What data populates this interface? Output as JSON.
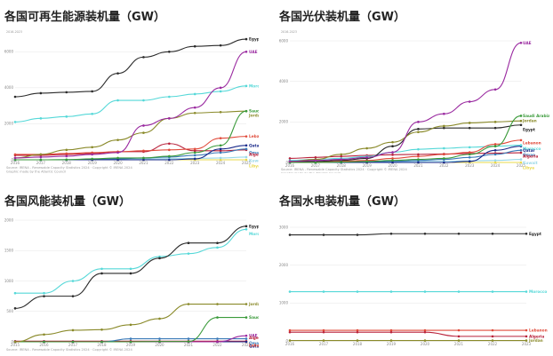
{
  "charts": [
    {
      "title": "各国可再生能源装机量（GW）",
      "range_note": "2016-2023",
      "source_note": "Source: IRENA - Renewable Capacity Statistics 2024 · Copyright © IRENA 2024",
      "source_note2": "Graphic made by the Atlantic Council",
      "y_ticks": [
        "0",
        "2000",
        "4000",
        "6000"
      ],
      "x_ticks": [
        "2016",
        "2017",
        "2018",
        "2019",
        "2020",
        "2021",
        "2022",
        "2023",
        "2024",
        "2025"
      ]
    },
    {
      "title": "各国光伏装机量（GW）",
      "range_note": "2016-2023",
      "source_note": "Source: IRENA - Renewable Capacity Statistics 2024 · Copyright © IRENA 2024",
      "source_note2": "Graphic made by the Atlantic Council",
      "y_ticks": [
        "0",
        "2000",
        "4000",
        "6000"
      ],
      "x_ticks": [
        "2016",
        "2017",
        "2018",
        "2019",
        "2020",
        "2021",
        "2022",
        "2023",
        "2024",
        "2025"
      ]
    },
    {
      "title": "各国风能装机量（GW）",
      "range_note": "",
      "source_note": "Source: IRENA - Renewable Capacity Statistics 2024 · Copyright © IRENA 2024",
      "source_note2": "",
      "y_ticks": [
        "0",
        "500",
        "1000",
        "1500",
        "2000"
      ],
      "x_ticks": [
        "2015",
        "2016",
        "2017",
        "2018",
        "2019",
        "2020",
        "2021",
        "2022",
        "2023"
      ]
    },
    {
      "title": "各国水电装机量（GW）",
      "range_note": "",
      "source_note": "",
      "source_note2": "",
      "y_ticks": [
        "0",
        "1000",
        "2000",
        "3000"
      ],
      "x_ticks": [
        "2016",
        "2017",
        "2018",
        "2019",
        "2020",
        "2021",
        "2022",
        "2023"
      ]
    }
  ],
  "chart_data": [
    {
      "type": "line",
      "title": "各国可再生能源装机量（GW）",
      "x": [
        2016,
        2017,
        2018,
        2019,
        2020,
        2021,
        2022,
        2023,
        2024,
        2025
      ],
      "ylim": [
        0,
        7000
      ],
      "series": [
        {
          "name": "Egypt",
          "color": "#2a2a2a",
          "values": [
            3500,
            3700,
            3750,
            3800,
            4800,
            5700,
            6000,
            6300,
            6350,
            6700
          ]
        },
        {
          "name": "UAE",
          "color": "#9a2aa0",
          "values": [
            100,
            150,
            200,
            300,
            400,
            1900,
            2300,
            2900,
            4000,
            6000
          ]
        },
        {
          "name": "Morocco",
          "color": "#55d8d8",
          "values": [
            2100,
            2300,
            2400,
            2550,
            3300,
            3300,
            3500,
            3650,
            3800,
            4100
          ]
        },
        {
          "name": "Saudi Arabia",
          "color": "#3a9a3a",
          "values": [
            0,
            0,
            10,
            50,
            100,
            100,
            200,
            400,
            800,
            2700
          ]
        },
        {
          "name": "Jordan",
          "color": "#8a8a2a",
          "values": [
            100,
            300,
            550,
            700,
            1100,
            1500,
            2300,
            2600,
            2650,
            2700
          ]
        },
        {
          "name": "Lebanon",
          "color": "#e04a3a",
          "values": [
            300,
            300,
            350,
            400,
            450,
            500,
            550,
            600,
            1200,
            1300
          ]
        },
        {
          "name": "Qatar",
          "color": "#1a2a8a",
          "values": [
            0,
            0,
            0,
            0,
            0,
            0,
            0,
            50,
            600,
            800
          ]
        },
        {
          "name": "Oman",
          "color": "#3a7ab8",
          "values": [
            0,
            0,
            0,
            10,
            50,
            100,
            150,
            250,
            400,
            600
          ]
        },
        {
          "name": "Algeria",
          "color": "#b8203a",
          "values": [
            250,
            250,
            300,
            350,
            450,
            450,
            900,
            500,
            500,
            550
          ]
        },
        {
          "name": "Kuwait",
          "color": "#9ad8e8",
          "values": [
            0,
            0,
            10,
            30,
            40,
            50,
            60,
            80,
            100,
            150
          ]
        },
        {
          "name": "Libya",
          "color": "#e8d84a",
          "values": [
            0,
            0,
            0,
            0,
            0,
            0,
            0,
            0,
            0,
            0
          ]
        }
      ]
    },
    {
      "type": "line",
      "title": "各国光伏装机量（GW）",
      "x": [
        2016,
        2017,
        2018,
        2019,
        2020,
        2021,
        2022,
        2023,
        2024,
        2025
      ],
      "ylim": [
        0,
        6000
      ],
      "series": [
        {
          "name": "UAE",
          "color": "#9a2aa0",
          "values": [
            50,
            100,
            150,
            250,
            500,
            2000,
            2400,
            3000,
            3600,
            5900
          ]
        },
        {
          "name": "Saudi Arabia",
          "color": "#3a9a3a",
          "values": [
            0,
            0,
            20,
            50,
            100,
            150,
            200,
            400,
            800,
            2300
          ]
        },
        {
          "name": "Jordan",
          "color": "#8a8a2a",
          "values": [
            50,
            150,
            400,
            700,
            1000,
            1500,
            1800,
            1950,
            2000,
            2050
          ]
        },
        {
          "name": "Egypt",
          "color": "#2a2a2a",
          "values": [
            50,
            50,
            100,
            200,
            800,
            1650,
            1700,
            1700,
            1700,
            1850
          ]
        },
        {
          "name": "Lebanon",
          "color": "#e04a3a",
          "values": [
            20,
            30,
            60,
            100,
            200,
            300,
            400,
            500,
            900,
            1100
          ]
        },
        {
          "name": "Morocco",
          "color": "#55d8d8",
          "values": [
            100,
            150,
            200,
            300,
            500,
            650,
            700,
            750,
            800,
            850
          ]
        },
        {
          "name": "Qatar",
          "color": "#1a2a8a",
          "values": [
            0,
            0,
            0,
            0,
            0,
            0,
            0,
            50,
            600,
            800
          ]
        },
        {
          "name": "Oman",
          "color": "#3a7ab8",
          "values": [
            0,
            0,
            0,
            10,
            50,
            100,
            150,
            250,
            400,
            600
          ]
        },
        {
          "name": "Algeria",
          "color": "#b8203a",
          "values": [
            200,
            250,
            300,
            350,
            380,
            400,
            420,
            440,
            460,
            480
          ]
        },
        {
          "name": "Kuwait",
          "color": "#9ad8e8",
          "values": [
            0,
            0,
            10,
            30,
            40,
            50,
            60,
            80,
            100,
            150
          ]
        },
        {
          "name": "Libya",
          "color": "#e8d84a",
          "values": [
            0,
            0,
            0,
            0,
            0,
            0,
            0,
            0,
            0,
            0
          ]
        }
      ]
    },
    {
      "type": "line",
      "title": "各国风能装机量（GW）",
      "x": [
        2015,
        2016,
        2017,
        2018,
        2019,
        2020,
        2021,
        2022,
        2023
      ],
      "ylim": [
        0,
        2000
      ],
      "series": [
        {
          "name": "Egypt",
          "color": "#2a2a2a",
          "values": [
            550,
            750,
            750,
            1125,
            1125,
            1375,
            1625,
            1625,
            1900
          ]
        },
        {
          "name": "Morocco",
          "color": "#55d8d8",
          "values": [
            800,
            800,
            1000,
            1200,
            1200,
            1400,
            1450,
            1550,
            1850
          ]
        },
        {
          "name": "Jordan",
          "color": "#8a8a2a",
          "values": [
            0,
            120,
            190,
            200,
            280,
            380,
            620,
            620,
            620
          ]
        },
        {
          "name": "Saudi Arabia",
          "color": "#3a9a3a",
          "values": [
            0,
            0,
            0,
            0,
            0,
            5,
            5,
            400,
            400
          ]
        },
        {
          "name": "UAE",
          "color": "#9a2aa0",
          "values": [
            0,
            0,
            0,
            0,
            0,
            0,
            0,
            0,
            100
          ]
        },
        {
          "name": "Qatar",
          "color": "#1a2a8a",
          "values": [
            0,
            0,
            0,
            0,
            0,
            0,
            0,
            0,
            0
          ]
        },
        {
          "name": "Oman",
          "color": "#3a7ab8",
          "values": [
            0,
            0,
            0,
            0,
            50,
            50,
            50,
            50,
            50
          ]
        },
        {
          "name": "Algeria",
          "color": "#b8203a",
          "values": [
            10,
            10,
            10,
            10,
            10,
            10,
            10,
            10,
            10
          ]
        },
        {
          "name": "Lebanon",
          "color": "#e04a3a",
          "values": [
            0,
            0,
            0,
            0,
            0,
            0,
            0,
            0,
            0
          ]
        }
      ]
    },
    {
      "type": "line",
      "title": "各国水电装机量（GW）",
      "x": [
        2016,
        2017,
        2018,
        2019,
        2020,
        2021,
        2022,
        2023
      ],
      "ylim": [
        0,
        3000
      ],
      "series": [
        {
          "name": "Egypt",
          "color": "#2a2a2a",
          "values": [
            2800,
            2800,
            2800,
            2830,
            2830,
            2830,
            2830,
            2830
          ]
        },
        {
          "name": "Morocco",
          "color": "#55d8d8",
          "values": [
            1300,
            1300,
            1300,
            1300,
            1300,
            1300,
            1300,
            1300
          ]
        },
        {
          "name": "Lebanon",
          "color": "#e04a3a",
          "values": [
            280,
            280,
            280,
            280,
            280,
            280,
            280,
            280
          ]
        },
        {
          "name": "Algeria",
          "color": "#b8203a",
          "values": [
            230,
            230,
            230,
            230,
            230,
            120,
            120,
            120
          ]
        },
        {
          "name": "Jordan",
          "color": "#8a8a2a",
          "values": [
            10,
            10,
            10,
            10,
            10,
            10,
            10,
            10
          ]
        }
      ]
    }
  ]
}
